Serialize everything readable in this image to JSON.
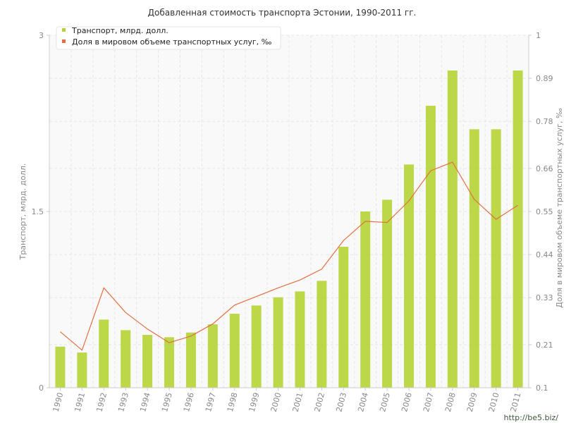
{
  "chart_data": {
    "type": "bar",
    "title": "Добавленная стоимость транспорта Эстонии, 1990-2011 гг.",
    "ylabel": "Транспорт, млрд. долл.",
    "y2label": "Доля в мировом объеме транспортных услуг, ‰",
    "categories": [
      "1990",
      "1991",
      "1992",
      "1993",
      "1994",
      "1995",
      "1996",
      "1997",
      "1998",
      "1999",
      "2000",
      "2001",
      "2002",
      "2003",
      "2004",
      "2005",
      "2006",
      "2007",
      "2008",
      "2009",
      "2010",
      "2011"
    ],
    "ylim": [
      0,
      3
    ],
    "y_ticks": [
      "0",
      "1.5",
      "3"
    ],
    "y2lim": [
      0.1,
      1
    ],
    "y2_ticks": [
      "0.1",
      "0.21",
      "0.33",
      "0.44",
      "0.55",
      "0.66",
      "0.78",
      "0.89",
      "1"
    ],
    "grid": true,
    "legend_position": "top-left",
    "series": [
      {
        "name": "Транспорт, млрд. долл.",
        "kind": "bar",
        "axis": "left",
        "color": "#b5d334",
        "values": [
          0.35,
          0.3,
          0.58,
          0.49,
          0.45,
          0.43,
          0.47,
          0.54,
          0.63,
          0.7,
          0.77,
          0.82,
          0.91,
          1.2,
          1.5,
          1.6,
          1.9,
          2.4,
          2.7,
          2.2,
          2.2,
          2.7
        ]
      },
      {
        "name": "Доля в мировом объеме транспортных услуг, ‰",
        "kind": "line",
        "axis": "right",
        "color": "#e07040",
        "values": [
          0.243,
          0.196,
          0.355,
          0.292,
          0.25,
          0.215,
          0.232,
          0.263,
          0.311,
          0.333,
          0.355,
          0.375,
          0.403,
          0.476,
          0.525,
          0.522,
          0.577,
          0.654,
          0.676,
          0.581,
          0.53,
          0.566
        ]
      }
    ]
  },
  "watermark": "http://be5.biz/"
}
